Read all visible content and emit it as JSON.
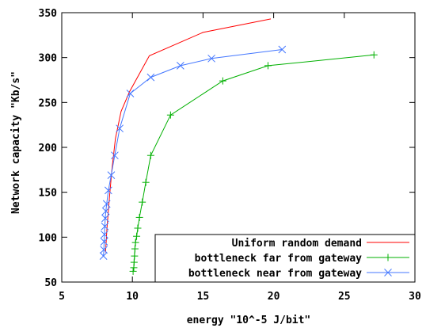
{
  "chart_data": {
    "type": "line",
    "xlabel": "energy \"10^-5 J/bit\"",
    "ylabel": "Network capacity \"Kb/s\"",
    "xlim": [
      5,
      30
    ],
    "ylim": [
      50,
      350
    ],
    "xticks": [
      5,
      10,
      15,
      20,
      25,
      30
    ],
    "yticks": [
      50,
      100,
      150,
      200,
      250,
      300,
      350
    ],
    "grid": false,
    "legend_position": "bottom-right",
    "series": [
      {
        "name": "Uniform random demand",
        "color": "#ff0000",
        "marker": "none",
        "x": [
          8.1,
          8.2,
          8.35,
          8.55,
          8.8,
          9.2,
          9.8,
          11.2,
          15.0,
          19.8
        ],
        "y": [
          83,
          110,
          140,
          175,
          210,
          240,
          262,
          302,
          328,
          343
        ]
      },
      {
        "name": "bottleneck far from gateway",
        "color": "#00b000",
        "marker": "plus",
        "x": [
          10.05,
          10.1,
          10.12,
          10.15,
          10.18,
          10.22,
          10.3,
          10.38,
          10.5,
          10.7,
          10.95,
          11.3,
          12.7,
          16.4,
          19.6,
          27.1
        ],
        "y": [
          62,
          66,
          72,
          79,
          87,
          94,
          101,
          110,
          122,
          139,
          161,
          191,
          236,
          274,
          291,
          303
        ]
      },
      {
        "name": "bottleneck near from gateway",
        "color": "#4477ff",
        "marker": "cross",
        "x": [
          7.95,
          7.98,
          8.0,
          8.02,
          8.05,
          8.08,
          8.12,
          8.18,
          8.3,
          8.5,
          8.75,
          9.1,
          9.85,
          11.3,
          13.4,
          15.6,
          20.6
        ],
        "y": [
          79,
          86,
          95,
          103,
          112,
          121,
          129,
          137,
          152,
          169,
          191,
          221,
          260,
          278,
          291,
          299,
          309
        ]
      }
    ]
  }
}
